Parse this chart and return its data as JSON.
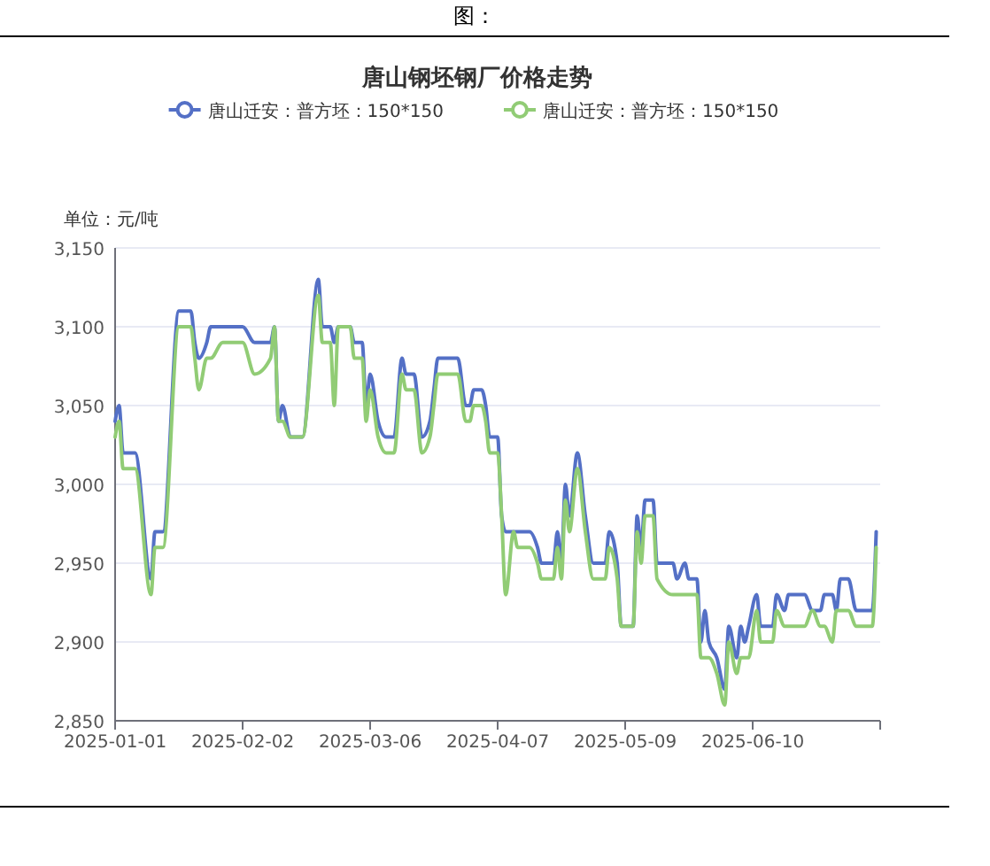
{
  "chart_data": {
    "type": "line",
    "title": "唐山钢坯钢厂价格走势",
    "ylabel": "单位：元/吨",
    "annotations": [
      "图："
    ],
    "x": [
      "2025-01-01",
      "2025-01-02",
      "2025-01-03",
      "2025-01-06",
      "2025-01-10",
      "2025-01-11",
      "2025-01-13",
      "2025-01-17",
      "2025-01-20",
      "2025-01-21",
      "2025-01-22",
      "2025-01-24",
      "2025-01-25",
      "2025-01-28",
      "2025-02-02",
      "2025-02-05",
      "2025-02-09",
      "2025-02-10",
      "2025-02-11",
      "2025-02-12",
      "2025-02-14",
      "2025-02-17",
      "2025-02-21",
      "2025-02-22",
      "2025-02-24",
      "2025-02-25",
      "2025-02-26",
      "2025-03-01",
      "2025-03-02",
      "2025-03-04",
      "2025-03-05",
      "2025-03-06",
      "2025-03-08",
      "2025-03-10",
      "2025-03-12",
      "2025-03-14",
      "2025-03-15",
      "2025-03-17",
      "2025-03-19",
      "2025-03-21",
      "2025-03-22",
      "2025-03-23",
      "2025-03-28",
      "2025-03-30",
      "2025-03-31",
      "2025-04-01",
      "2025-04-03",
      "2025-04-04",
      "2025-04-05",
      "2025-04-07",
      "2025-04-08",
      "2025-04-09",
      "2025-04-11",
      "2025-04-12",
      "2025-04-15",
      "2025-04-17",
      "2025-04-18",
      "2025-04-21",
      "2025-04-22",
      "2025-04-23",
      "2025-04-24",
      "2025-04-25",
      "2025-04-27",
      "2025-04-29",
      "2025-05-01",
      "2025-05-04",
      "2025-05-05",
      "2025-05-07",
      "2025-05-08",
      "2025-05-11",
      "2025-05-12",
      "2025-05-13",
      "2025-05-14",
      "2025-05-16",
      "2025-05-17",
      "2025-05-21",
      "2025-05-22",
      "2025-05-24",
      "2025-05-25",
      "2025-05-27",
      "2025-05-28",
      "2025-05-29",
      "2025-05-30",
      "2025-06-01",
      "2025-06-03",
      "2025-06-04",
      "2025-06-06",
      "2025-06-07",
      "2025-06-08",
      "2025-06-09",
      "2025-06-11",
      "2025-06-12",
      "2025-06-15",
      "2025-06-16",
      "2025-06-18",
      "2025-06-19",
      "2025-06-23",
      "2025-06-25",
      "2025-06-27",
      "2025-06-28",
      "2025-06-30",
      "2025-07-01",
      "2025-07-02",
      "2025-07-04",
      "2025-07-06",
      "2025-07-10",
      "2025-07-11"
    ],
    "series": [
      {
        "name": "唐山迁安：普方坯：150*150",
        "color": "#5470c6",
        "values": [
          3040,
          3050,
          3020,
          3020,
          2940,
          2970,
          2970,
          3110,
          3110,
          3090,
          3080,
          3090,
          3100,
          3100,
          3100,
          3090,
          3090,
          3100,
          3040,
          3050,
          3030,
          3030,
          3130,
          3100,
          3100,
          3090,
          3100,
          3100,
          3090,
          3090,
          3050,
          3070,
          3040,
          3030,
          3030,
          3080,
          3070,
          3070,
          3030,
          3040,
          3060,
          3080,
          3080,
          3050,
          3050,
          3060,
          3060,
          3050,
          3030,
          3030,
          2980,
          2970,
          2970,
          2970,
          2970,
          2960,
          2950,
          2950,
          2970,
          2950,
          3000,
          2980,
          3020,
          2980,
          2950,
          2950,
          2970,
          2950,
          2910,
          2910,
          2980,
          2960,
          2990,
          2990,
          2950,
          2950,
          2940,
          2950,
          2940,
          2940,
          2900,
          2920,
          2900,
          2890,
          2870,
          2910,
          2890,
          2910,
          2900,
          2910,
          2930,
          2910,
          2910,
          2930,
          2920,
          2930,
          2930,
          2920,
          2920,
          2930,
          2930,
          2920,
          2940,
          2940,
          2920,
          2920,
          2970
        ]
      },
      {
        "name": "唐山迁安：普方坯：150*150",
        "color": "#91cc75",
        "values": [
          3030,
          3040,
          3010,
          3010,
          2930,
          2960,
          2960,
          3100,
          3100,
          3080,
          3060,
          3080,
          3080,
          3090,
          3090,
          3070,
          3080,
          3100,
          3040,
          3040,
          3030,
          3030,
          3120,
          3090,
          3090,
          3050,
          3100,
          3100,
          3080,
          3080,
          3040,
          3060,
          3030,
          3020,
          3020,
          3070,
          3060,
          3060,
          3020,
          3030,
          3050,
          3070,
          3070,
          3040,
          3040,
          3050,
          3050,
          3040,
          3020,
          3020,
          2980,
          2930,
          2970,
          2960,
          2960,
          2950,
          2940,
          2940,
          2960,
          2940,
          2990,
          2970,
          3010,
          2970,
          2940,
          2940,
          2960,
          2940,
          2910,
          2910,
          2970,
          2950,
          2980,
          2980,
          2940,
          2930,
          2930,
          2930,
          2930,
          2930,
          2890,
          2890,
          2890,
          2880,
          2860,
          2900,
          2880,
          2890,
          2890,
          2890,
          2920,
          2900,
          2900,
          2920,
          2910,
          2910,
          2910,
          2920,
          2910,
          2910,
          2900,
          2920,
          2920,
          2920,
          2910,
          2910,
          2960
        ]
      }
    ],
    "xlim": [
      "2025-01-01",
      "2025-07-12"
    ],
    "xticks": [
      "2025-01-01",
      "2025-02-02",
      "2025-03-06",
      "2025-04-07",
      "2025-05-09",
      "2025-06-10"
    ],
    "ylim": [
      2850,
      3150
    ],
    "yticks": [
      {
        "value": 2850,
        "label": "2,850"
      },
      {
        "value": 2900,
        "label": "2,900"
      },
      {
        "value": 2950,
        "label": "2,950"
      },
      {
        "value": 3000,
        "label": "3,000"
      },
      {
        "value": 3050,
        "label": "3,050"
      },
      {
        "value": 3100,
        "label": "3,100"
      },
      {
        "value": 3150,
        "label": "3,150"
      }
    ],
    "grid": "y",
    "legend": "top"
  }
}
